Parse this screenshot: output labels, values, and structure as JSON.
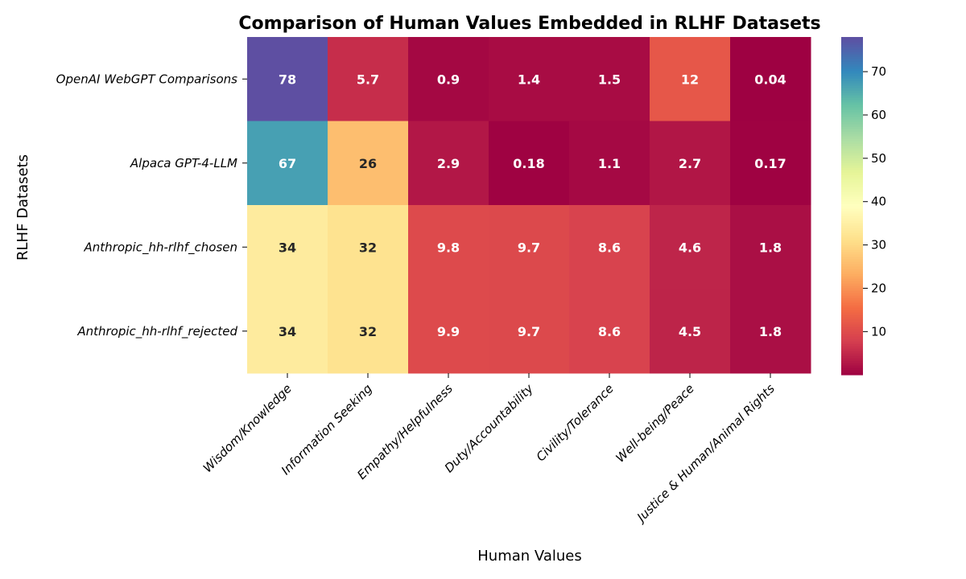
{
  "chart_data": {
    "type": "heatmap",
    "title": "Comparison of Human Values Embedded in RLHF Datasets",
    "xlabel": "Human Values",
    "ylabel": "RLHF Datasets",
    "rows": [
      "OpenAI WebGPT Comparisons",
      "Alpaca GPT-4-LLM",
      "Anthropic_hh-rlhf_chosen",
      "Anthropic_hh-rlhf_rejected"
    ],
    "columns": [
      "Wisdom/Knowledge",
      "Information Seeking",
      "Empathy/Helpfulness",
      "Duty/Accountability",
      "Civility/Tolerance",
      "Well-being/Peace",
      "Justice & Human/Animal Rights"
    ],
    "values": [
      [
        78,
        5.7,
        0.9,
        1.4,
        1.5,
        12,
        0.04
      ],
      [
        67,
        26,
        2.9,
        0.18,
        1.1,
        2.7,
        0.17
      ],
      [
        34,
        32,
        9.8,
        9.7,
        8.6,
        4.6,
        1.8
      ],
      [
        34,
        32,
        9.9,
        9.7,
        8.6,
        4.5,
        1.8
      ]
    ],
    "labels": [
      [
        "78",
        "5.7",
        "0.9",
        "1.4",
        "1.5",
        "12",
        "0.04"
      ],
      [
        "67",
        "26",
        "2.9",
        "0.18",
        "1.1",
        "2.7",
        "0.17"
      ],
      [
        "34",
        "32",
        "9.8",
        "9.7",
        "8.6",
        "4.6",
        "1.8"
      ],
      [
        "34",
        "32",
        "9.9",
        "9.7",
        "8.6",
        "4.5",
        "1.8"
      ]
    ],
    "colormap": "Spectral",
    "vmin": 0.04,
    "vmax": 78,
    "colorbar_ticks": [
      10,
      20,
      30,
      40,
      50,
      60,
      70
    ],
    "colorbar_tick_labels": [
      "10",
      "20",
      "30",
      "40",
      "50",
      "60",
      "70"
    ]
  }
}
